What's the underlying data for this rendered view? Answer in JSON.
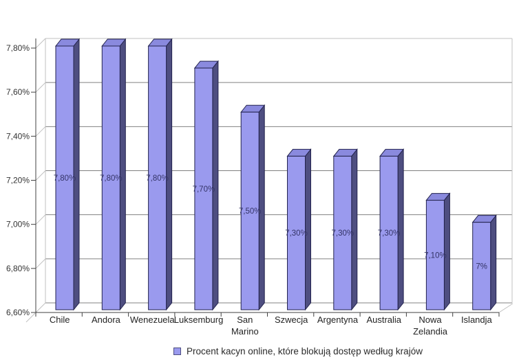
{
  "chart_data": {
    "type": "bar",
    "style": "3d-column",
    "categories": [
      "Chile",
      "Andora",
      "Wenezuela",
      "Luksemburg",
      "San Marino",
      "Szwecja",
      "Argentyna",
      "Australia",
      "Nowa Zelandia",
      "Islandja"
    ],
    "values": [
      7.8,
      7.8,
      7.8,
      7.7,
      7.5,
      7.3,
      7.3,
      7.3,
      7.1,
      7.0
    ],
    "data_labels": [
      "7,80%",
      "7,80%",
      "7,80%",
      "7,70%",
      "7,50%",
      "7,30%",
      "7,30%",
      "7,30%",
      "7,10%",
      "7%"
    ],
    "y_ticks": [
      "7,80%",
      "7,60%",
      "7,40%",
      "7,20%",
      "7,00%",
      "6,80%",
      "6,60%"
    ],
    "y_tick_values": [
      7.8,
      7.6,
      7.4,
      7.2,
      7.0,
      6.8,
      6.6
    ],
    "ylim": [
      6.6,
      7.8
    ],
    "grid": true,
    "title": "",
    "xlabel": "",
    "ylabel": "",
    "legend": "Procent kacyn online, które blokują dostęp według krajów",
    "legend_position": "bottom",
    "colors": {
      "bar_front": "#9a9aee",
      "bar_top": "#8a8ade",
      "bar_side": "#4e4e80",
      "bar_outline": "#22224d",
      "gridline": "#808080",
      "wall_edge": "#c0c0c0",
      "axis": "#404040",
      "label_text": "#333366",
      "tick_text": "#333333",
      "category_text": "#222222",
      "legend_text": "#2b2b2b"
    }
  }
}
